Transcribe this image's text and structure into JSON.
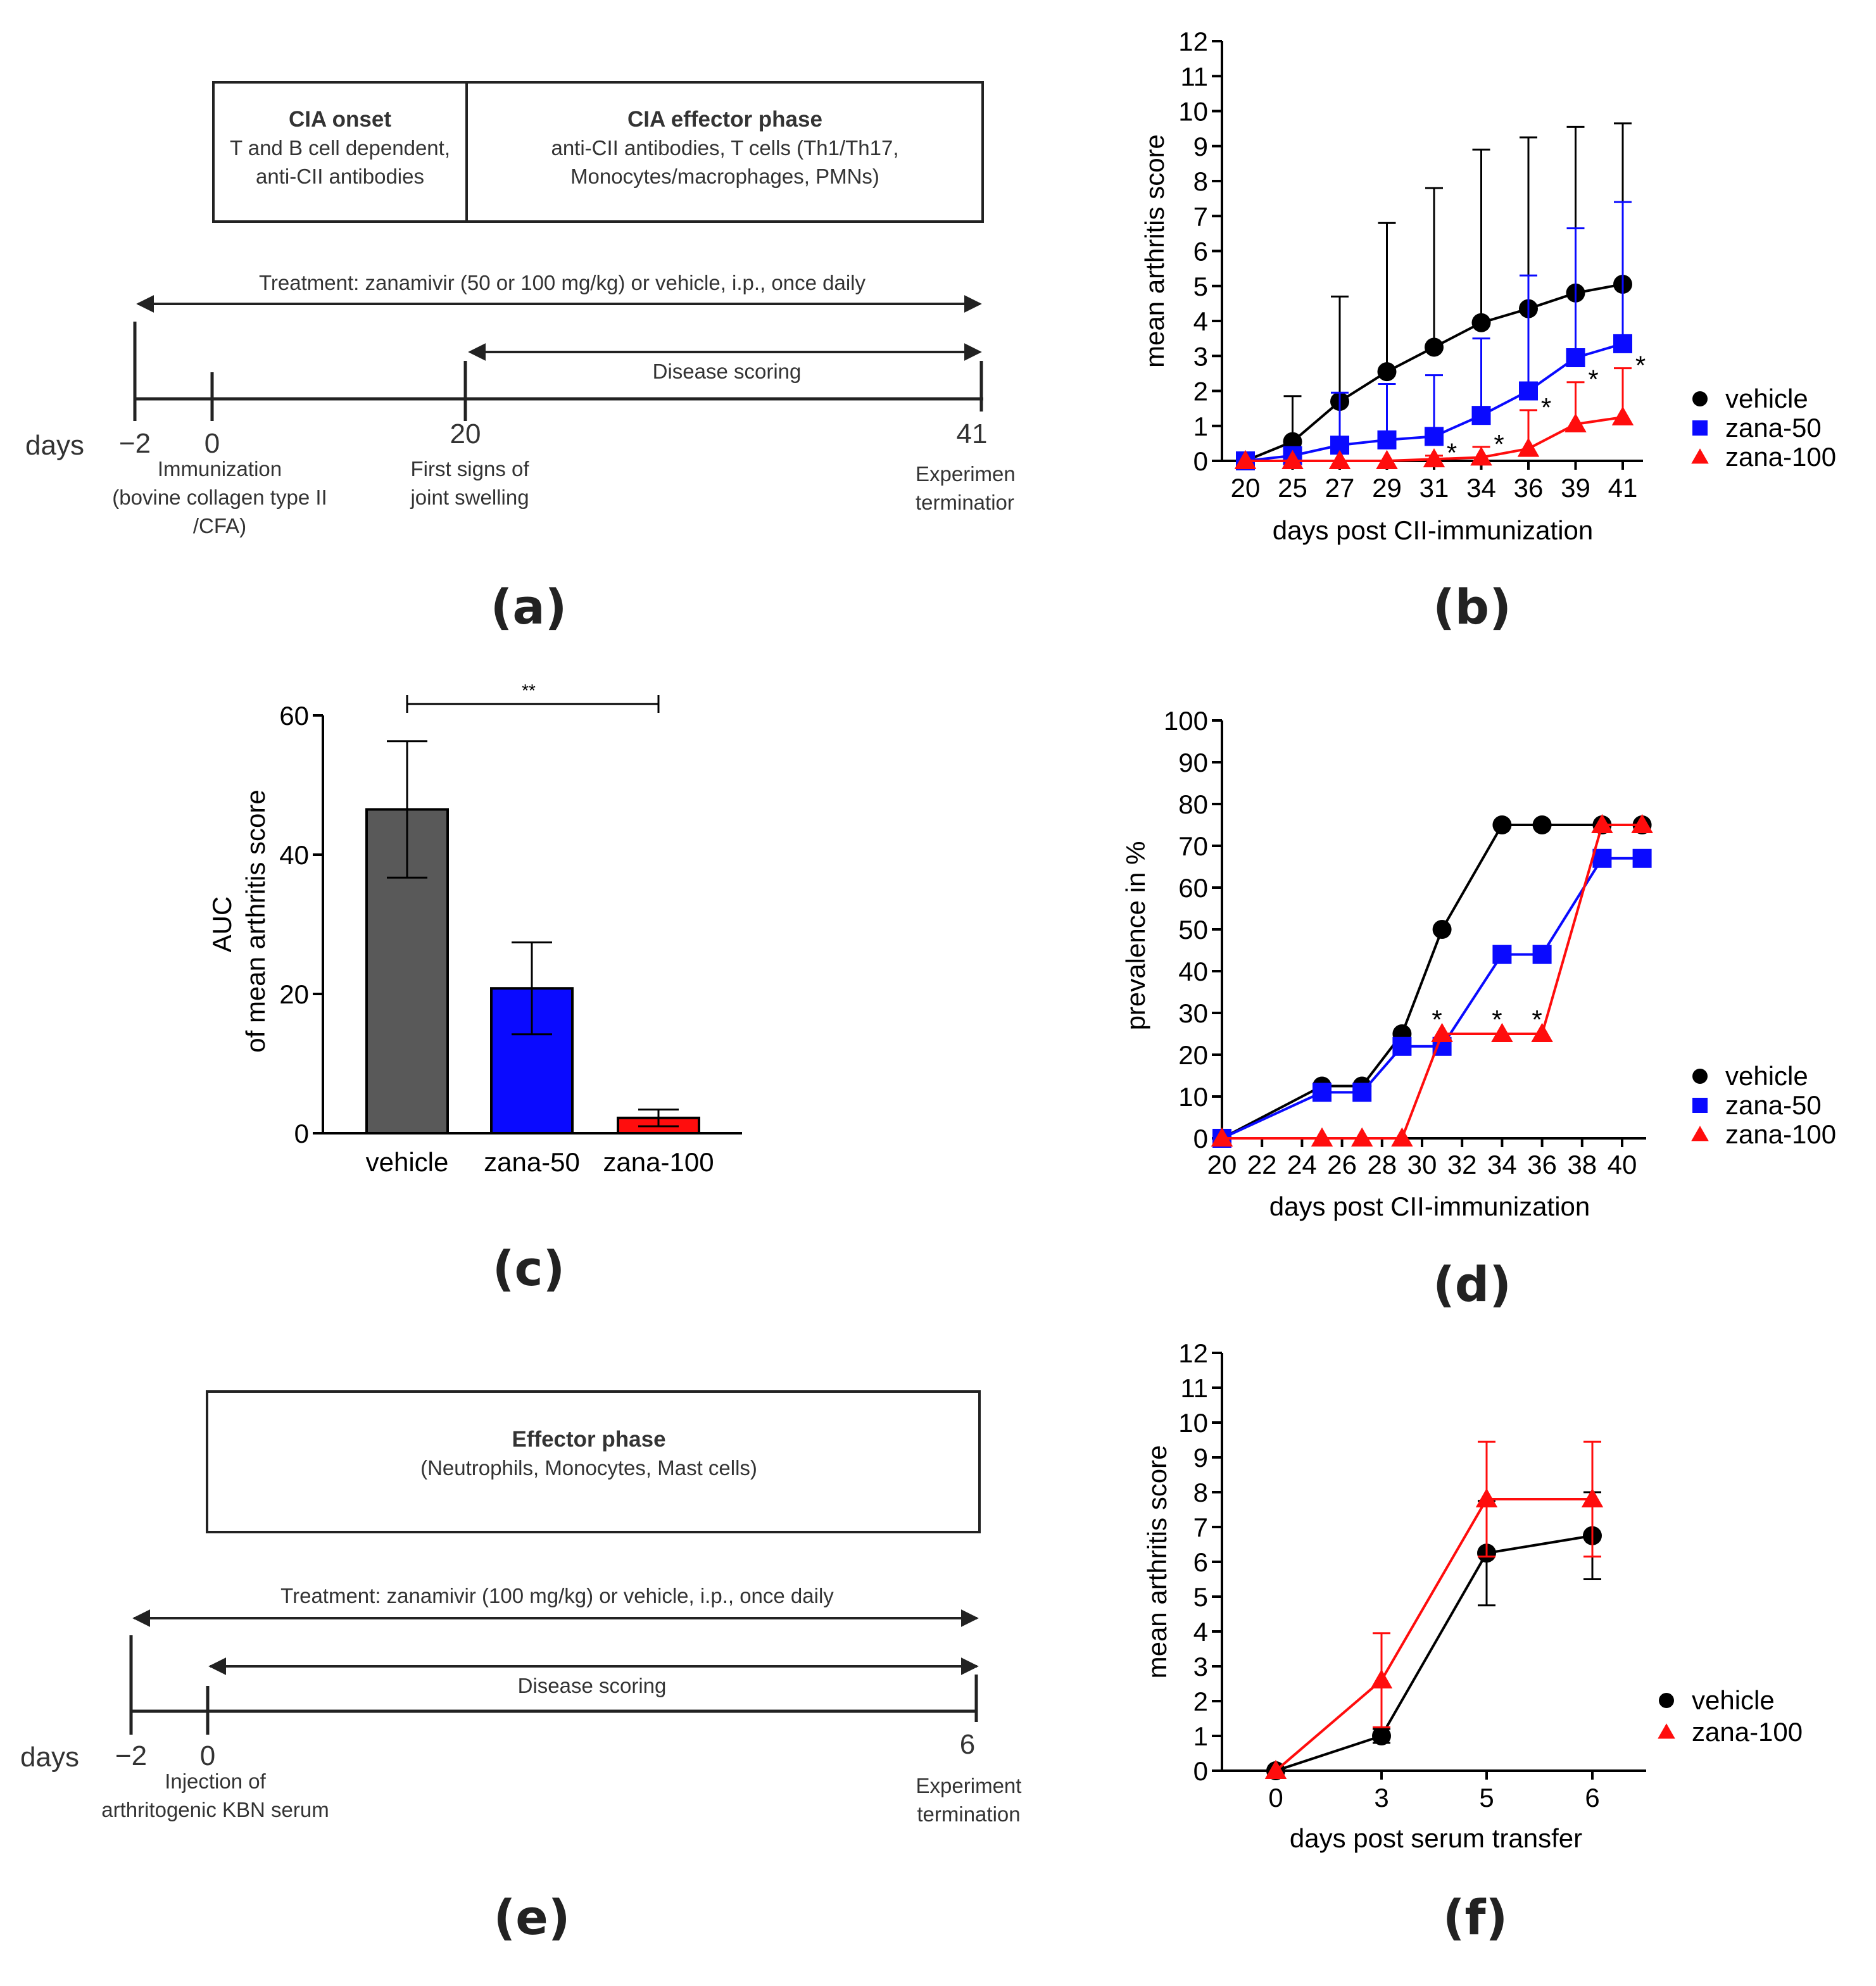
{
  "panels": {
    "a": "(a)",
    "b": "(b)",
    "c": "(c)",
    "d": "(d)",
    "e": "(e)",
    "f": "(f)"
  },
  "diagram_a": {
    "box1_title": "CIA onset",
    "box1_line1": "T and B cell dependent,",
    "box1_line2": "anti-CII antibodies",
    "box2_title": "CIA effector phase",
    "box2_line1": "anti-CII antibodies, T cells (Th1/Th17,",
    "box2_line2": "Monocytes/macrophages, PMNs)",
    "treatment": "Treatment: zanamivir (50 or 100 mg/kg) or vehicle, i.p., once daily",
    "scoring": "Disease scoring",
    "days": "days",
    "t_m2": "−2",
    "t_0": "0",
    "t_20": "20",
    "t_41": "41",
    "ann0_l1": "Immunization",
    "ann0_l2": "(bovine collagen type II",
    "ann0_l3": "/CFA)",
    "ann20_l1": "First signs of",
    "ann20_l2": "joint swelling",
    "ann41_l1": "Experimen",
    "ann41_l2": "terminatior"
  },
  "diagram_e": {
    "box_title": "Effector phase",
    "box_line1": "(Neutrophils, Monocytes, Mast cells)",
    "treatment": "Treatment: zanamivir (100 mg/kg) or vehicle, i.p., once daily",
    "scoring": "Disease scoring",
    "days": "days",
    "t_m2": "−2",
    "t_0": "0",
    "t_6": "6",
    "ann0_l1": "Injection of",
    "ann0_l2": "arthritogenic KBN serum",
    "ann6_l1": "Experiment",
    "ann6_l2": "termination"
  },
  "colors": {
    "vehicle": "#000000",
    "zana50": "#0a0aff",
    "zana100": "#ff0d0d",
    "bar_vehicle": "#595959"
  },
  "chart_data": [
    {
      "id": "b",
      "type": "line",
      "title": "",
      "xlabel": "days post CII-immunization",
      "ylabel": "mean arthritis score",
      "categories": [
        "20",
        "25",
        "27",
        "29",
        "31",
        "34",
        "36",
        "39",
        "41"
      ],
      "ylim": [
        0,
        12
      ],
      "yticks": [
        "0",
        "1",
        "2",
        "3",
        "4",
        "5",
        "6",
        "7",
        "8",
        "9",
        "10",
        "11",
        "12"
      ],
      "series": [
        {
          "name": "vehicle",
          "marker": "circle",
          "values": [
            0,
            0.55,
            1.7,
            2.55,
            3.25,
            3.95,
            4.35,
            4.8,
            5.05
          ],
          "err": [
            0,
            1.3,
            3.0,
            4.25,
            4.55,
            4.95,
            4.9,
            4.75,
            4.6
          ]
        },
        {
          "name": "zana-50",
          "marker": "square",
          "values": [
            0,
            0.15,
            0.45,
            0.6,
            0.7,
            1.3,
            2.0,
            2.95,
            3.35
          ],
          "err": [
            0,
            0.2,
            1.5,
            1.6,
            1.75,
            2.2,
            3.3,
            3.7,
            4.05
          ]
        },
        {
          "name": "zana-100",
          "marker": "triangle",
          "values": [
            0,
            0,
            0,
            0,
            0.05,
            0.1,
            0.35,
            1.05,
            1.25
          ],
          "err": [
            0,
            0,
            0,
            0,
            0.1,
            0.3,
            1.1,
            1.2,
            1.4
          ]
        }
      ],
      "stars": [
        {
          "index": 4,
          "text": "*"
        },
        {
          "index": 5,
          "text": "*"
        },
        {
          "index": 6,
          "text": "*"
        },
        {
          "index": 7,
          "text": "*"
        },
        {
          "index": 8,
          "text": "*"
        }
      ],
      "legend": "right"
    },
    {
      "id": "c",
      "type": "bar",
      "xlabel": "",
      "ylabel_line1": "AUC",
      "ylabel_line2": "of mean arthritis score",
      "categories": [
        "vehicle",
        "zana-50",
        "zana-100"
      ],
      "values": [
        46.5,
        20.8,
        2.2
      ],
      "err": [
        9.8,
        6.6,
        1.2
      ],
      "ylim": [
        0,
        60
      ],
      "yticks": [
        "0",
        "20",
        "40",
        "60"
      ],
      "significance": "**"
    },
    {
      "id": "d",
      "type": "line",
      "xlabel": "days post CII-immunization",
      "ylabel": "prevalence in %",
      "xlim": [
        20,
        41
      ],
      "xticks": [
        "20",
        "22",
        "24",
        "26",
        "28",
        "30",
        "32",
        "34",
        "36",
        "38",
        "40"
      ],
      "ylim": [
        0,
        100
      ],
      "yticks": [
        "0",
        "10",
        "20",
        "30",
        "40",
        "50",
        "60",
        "70",
        "80",
        "90",
        "100"
      ],
      "series": [
        {
          "name": "vehicle",
          "marker": "circle",
          "x": [
            20,
            25,
            27,
            29,
            31,
            34,
            36,
            39,
            41
          ],
          "y": [
            0,
            12.5,
            12.5,
            25,
            50,
            75,
            75,
            75,
            75
          ]
        },
        {
          "name": "zana-50",
          "marker": "square",
          "x": [
            20,
            25,
            27,
            29,
            31,
            34,
            36,
            39,
            41
          ],
          "y": [
            0,
            11,
            11,
            22,
            22,
            44,
            44,
            67,
            67
          ]
        },
        {
          "name": "zana-100",
          "marker": "triangle",
          "x": [
            20,
            25,
            27,
            29,
            31,
            34,
            36,
            39,
            41
          ],
          "y": [
            0,
            0,
            0,
            0,
            25,
            25,
            25,
            75,
            75
          ]
        }
      ],
      "stars": [
        {
          "x": 31,
          "text": "*"
        },
        {
          "x": 34,
          "text": "*"
        },
        {
          "x": 36,
          "text": "*"
        }
      ],
      "legend": "right"
    },
    {
      "id": "f",
      "type": "line",
      "xlabel": "days post serum transfer",
      "ylabel": "mean arthritis score",
      "categories": [
        "0",
        "3",
        "5",
        "6"
      ],
      "ylim": [
        0,
        12
      ],
      "yticks": [
        "0",
        "1",
        "2",
        "3",
        "4",
        "5",
        "6",
        "7",
        "8",
        "9",
        "10",
        "11",
        "12"
      ],
      "series": [
        {
          "name": "vehicle",
          "marker": "circle",
          "values": [
            0,
            1.0,
            6.25,
            6.75
          ],
          "err": [
            0,
            0.2,
            1.5,
            1.25
          ]
        },
        {
          "name": "zana-100",
          "marker": "triangle",
          "values": [
            0,
            2.6,
            7.8,
            7.8
          ],
          "err": [
            0,
            1.35,
            1.65,
            1.65
          ]
        }
      ],
      "legend": "right"
    }
  ]
}
